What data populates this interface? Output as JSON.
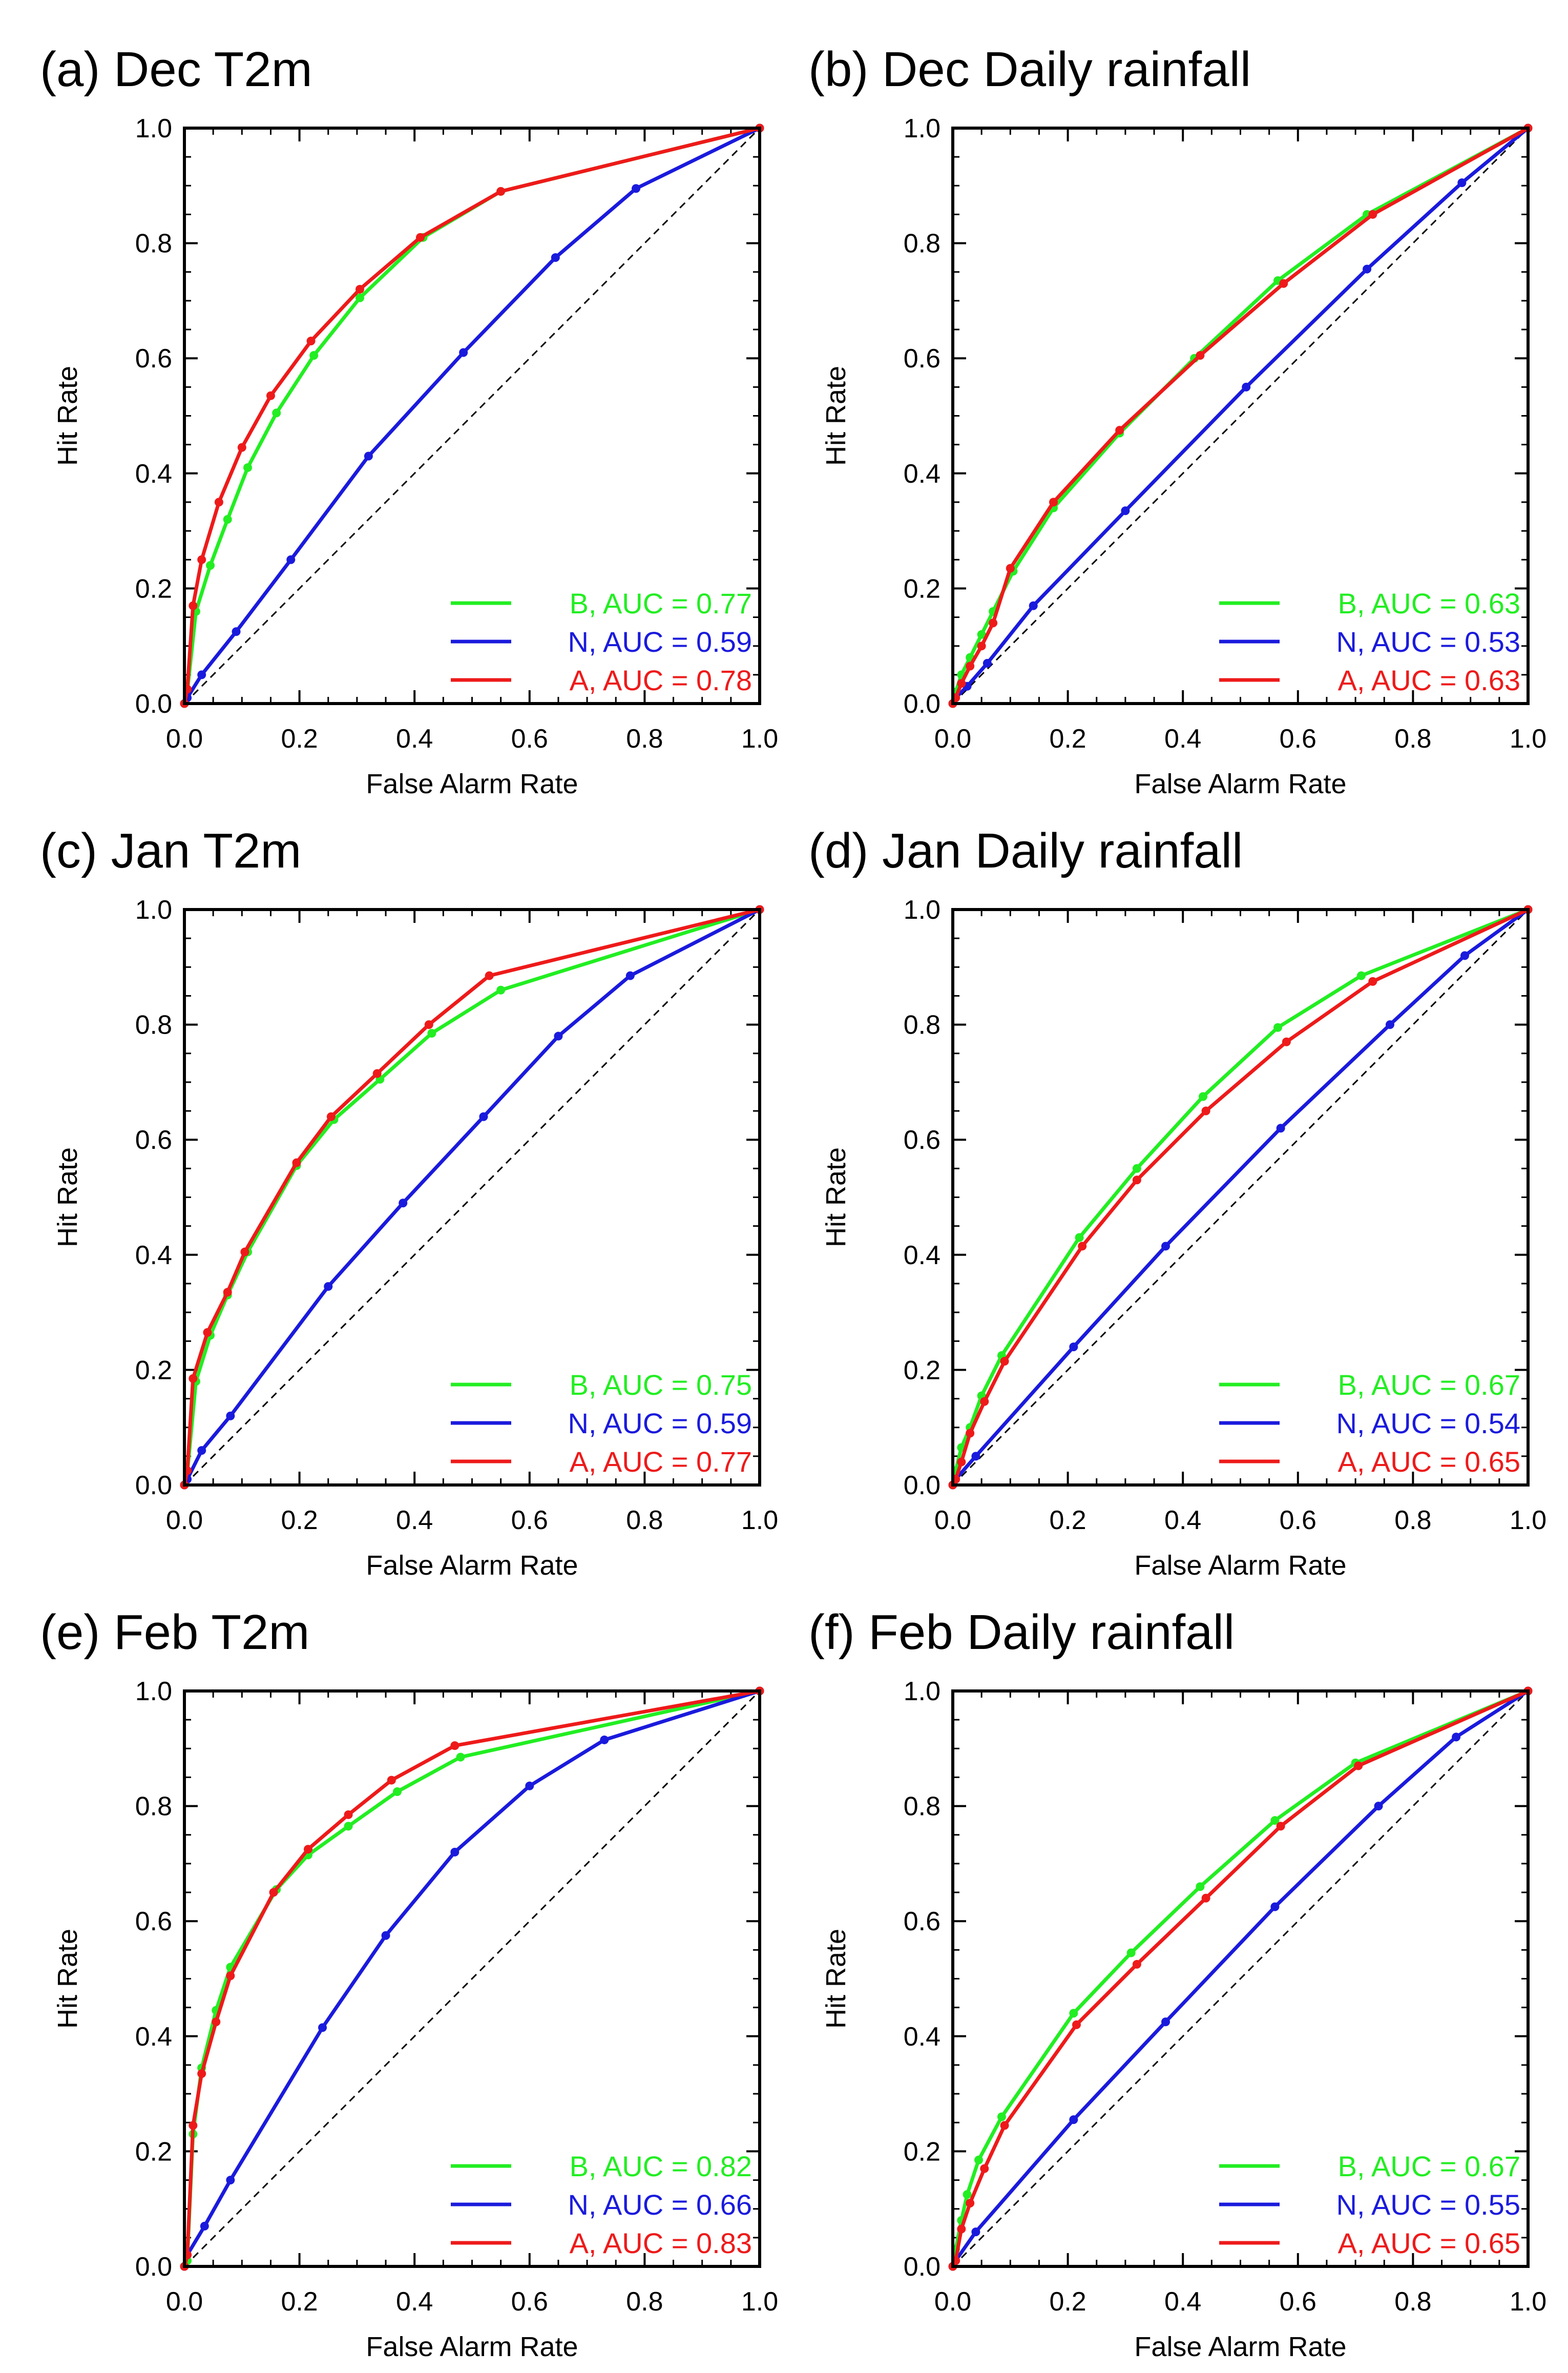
{
  "figure": {
    "colors": {
      "B": "#22ee22",
      "N": "#1a1add",
      "A": "#ee1a1a",
      "diagonal": "#000000"
    }
  },
  "chart_data": [
    {
      "type": "line",
      "title": "(a) Dec  T2m",
      "xlabel": "False Alarm Rate",
      "ylabel": "Hit Rate",
      "xlim": [
        0,
        1
      ],
      "ylim": [
        0,
        1
      ],
      "xticks": [
        "0.0",
        "0.2",
        "0.4",
        "0.6",
        "0.8",
        "1.0"
      ],
      "yticks": [
        "0.0",
        "0.2",
        "0.4",
        "0.6",
        "0.8",
        "1.0"
      ],
      "legend_position": "bottom-right",
      "series": [
        {
          "name": "B",
          "legend": "B, AUC = 0.77",
          "color": "#22ee22",
          "x": [
            0,
            0.005,
            0.02,
            0.045,
            0.075,
            0.11,
            0.16,
            0.225,
            0.305,
            0.415,
            0.55,
            1.0
          ],
          "y": [
            0,
            0.02,
            0.16,
            0.24,
            0.32,
            0.41,
            0.505,
            0.605,
            0.705,
            0.81,
            0.89,
            1.0
          ]
        },
        {
          "name": "N",
          "legend": "N, AUC = 0.59",
          "color": "#1a1add",
          "x": [
            0,
            0.005,
            0.03,
            0.09,
            0.185,
            0.32,
            0.485,
            0.645,
            0.785,
            1.0
          ],
          "y": [
            0,
            0.01,
            0.05,
            0.125,
            0.25,
            0.43,
            0.61,
            0.775,
            0.895,
            1.0
          ]
        },
        {
          "name": "A",
          "legend": "A, AUC = 0.78",
          "color": "#ee1a1a",
          "x": [
            0,
            0.005,
            0.015,
            0.03,
            0.06,
            0.1,
            0.15,
            0.22,
            0.305,
            0.41,
            0.55,
            1.0
          ],
          "y": [
            0,
            0.025,
            0.17,
            0.25,
            0.35,
            0.445,
            0.535,
            0.63,
            0.72,
            0.81,
            0.89,
            1.0
          ]
        }
      ]
    },
    {
      "type": "line",
      "title": "(b) Dec  Daily rainfall",
      "xlabel": "False Alarm Rate",
      "ylabel": "Hit Rate",
      "xlim": [
        0,
        1
      ],
      "ylim": [
        0,
        1
      ],
      "xticks": [
        "0.0",
        "0.2",
        "0.4",
        "0.6",
        "0.8",
        "1.0"
      ],
      "yticks": [
        "0.0",
        "0.2",
        "0.4",
        "0.6",
        "0.8",
        "1.0"
      ],
      "legend_position": "bottom-right",
      "series": [
        {
          "name": "B",
          "legend": "B, AUC = 0.63",
          "color": "#22ee22",
          "x": [
            0,
            0.005,
            0.015,
            0.03,
            0.05,
            0.07,
            0.105,
            0.175,
            0.29,
            0.42,
            0.565,
            0.72,
            1.0
          ],
          "y": [
            0,
            0.02,
            0.05,
            0.08,
            0.12,
            0.16,
            0.23,
            0.34,
            0.47,
            0.6,
            0.735,
            0.85,
            1.0
          ]
        },
        {
          "name": "N",
          "legend": "N, AUC = 0.53",
          "color": "#1a1add",
          "x": [
            0,
            0.005,
            0.025,
            0.06,
            0.14,
            0.3,
            0.51,
            0.72,
            0.885,
            1.0
          ],
          "y": [
            0,
            0.01,
            0.03,
            0.07,
            0.17,
            0.335,
            0.55,
            0.755,
            0.905,
            1.0
          ]
        },
        {
          "name": "A",
          "legend": "A, AUC = 0.63",
          "color": "#ee1a1a",
          "x": [
            0,
            0.005,
            0.015,
            0.03,
            0.05,
            0.07,
            0.1,
            0.175,
            0.29,
            0.43,
            0.575,
            0.73,
            1.0
          ],
          "y": [
            0,
            0.01,
            0.035,
            0.065,
            0.1,
            0.14,
            0.235,
            0.35,
            0.475,
            0.605,
            0.73,
            0.85,
            1.0
          ]
        }
      ]
    },
    {
      "type": "line",
      "title": "(c) Jan  T2m",
      "xlabel": "False Alarm Rate",
      "ylabel": "Hit Rate",
      "xlim": [
        0,
        1
      ],
      "ylim": [
        0,
        1
      ],
      "xticks": [
        "0.0",
        "0.2",
        "0.4",
        "0.6",
        "0.8",
        "1.0"
      ],
      "yticks": [
        "0.0",
        "0.2",
        "0.4",
        "0.6",
        "0.8",
        "1.0"
      ],
      "legend_position": "bottom-right",
      "series": [
        {
          "name": "B",
          "legend": "B, AUC = 0.75",
          "color": "#22ee22",
          "x": [
            0,
            0.005,
            0.02,
            0.045,
            0.075,
            0.11,
            0.195,
            0.26,
            0.34,
            0.43,
            0.55,
            1.0
          ],
          "y": [
            0,
            0.02,
            0.18,
            0.26,
            0.33,
            0.405,
            0.555,
            0.635,
            0.705,
            0.785,
            0.86,
            1.0
          ]
        },
        {
          "name": "N",
          "legend": "N, AUC = 0.59",
          "color": "#1a1add",
          "x": [
            0,
            0.005,
            0.03,
            0.08,
            0.25,
            0.38,
            0.52,
            0.65,
            0.775,
            1.0
          ],
          "y": [
            0,
            0.01,
            0.06,
            0.12,
            0.345,
            0.49,
            0.64,
            0.78,
            0.885,
            1.0
          ]
        },
        {
          "name": "A",
          "legend": "A, AUC = 0.77",
          "color": "#ee1a1a",
          "x": [
            0,
            0.005,
            0.015,
            0.04,
            0.075,
            0.105,
            0.195,
            0.255,
            0.335,
            0.425,
            0.53,
            1.0
          ],
          "y": [
            0,
            0.025,
            0.185,
            0.265,
            0.335,
            0.405,
            0.56,
            0.64,
            0.715,
            0.8,
            0.885,
            1.0
          ]
        }
      ]
    },
    {
      "type": "line",
      "title": "(d) Jan  Daily rainfall",
      "xlabel": "False Alarm Rate",
      "ylabel": "Hit Rate",
      "xlim": [
        0,
        1
      ],
      "ylim": [
        0,
        1
      ],
      "xticks": [
        "0.0",
        "0.2",
        "0.4",
        "0.6",
        "0.8",
        "1.0"
      ],
      "yticks": [
        "0.0",
        "0.2",
        "0.4",
        "0.6",
        "0.8",
        "1.0"
      ],
      "legend_position": "bottom-right",
      "series": [
        {
          "name": "B",
          "legend": "B, AUC = 0.67",
          "color": "#22ee22",
          "x": [
            0,
            0.005,
            0.015,
            0.03,
            0.05,
            0.085,
            0.22,
            0.32,
            0.435,
            0.565,
            0.71,
            1.0
          ],
          "y": [
            0,
            0.025,
            0.065,
            0.1,
            0.155,
            0.225,
            0.43,
            0.55,
            0.675,
            0.795,
            0.885,
            1.0
          ]
        },
        {
          "name": "N",
          "legend": "N, AUC = 0.54",
          "color": "#1a1add",
          "x": [
            0,
            0.005,
            0.04,
            0.21,
            0.37,
            0.57,
            0.76,
            0.89,
            1.0
          ],
          "y": [
            0,
            0.01,
            0.05,
            0.24,
            0.415,
            0.62,
            0.8,
            0.92,
            1.0
          ]
        },
        {
          "name": "A",
          "legend": "A, AUC = 0.65",
          "color": "#ee1a1a",
          "x": [
            0,
            0.005,
            0.015,
            0.03,
            0.055,
            0.09,
            0.225,
            0.32,
            0.44,
            0.58,
            0.73,
            1.0
          ],
          "y": [
            0,
            0.01,
            0.04,
            0.09,
            0.145,
            0.215,
            0.415,
            0.53,
            0.65,
            0.77,
            0.875,
            1.0
          ]
        }
      ]
    },
    {
      "type": "line",
      "title": "(e) Feb  T2m",
      "xlabel": "False Alarm Rate",
      "ylabel": "Hit Rate",
      "xlim": [
        0,
        1
      ],
      "ylim": [
        0,
        1
      ],
      "xticks": [
        "0.0",
        "0.2",
        "0.4",
        "0.6",
        "0.8",
        "1.0"
      ],
      "yticks": [
        "0.0",
        "0.2",
        "0.4",
        "0.6",
        "0.8",
        "1.0"
      ],
      "legend_position": "bottom-right",
      "series": [
        {
          "name": "B",
          "legend": "B, AUC = 0.82",
          "color": "#22ee22",
          "x": [
            0,
            0.005,
            0.015,
            0.03,
            0.055,
            0.08,
            0.16,
            0.215,
            0.285,
            0.37,
            0.48,
            1.0
          ],
          "y": [
            0,
            0.01,
            0.23,
            0.345,
            0.445,
            0.52,
            0.655,
            0.715,
            0.765,
            0.825,
            0.885,
            1.0
          ]
        },
        {
          "name": "N",
          "legend": "N, AUC = 0.66",
          "color": "#1a1add",
          "x": [
            0,
            0.005,
            0.035,
            0.08,
            0.24,
            0.35,
            0.47,
            0.6,
            0.73,
            1.0
          ],
          "y": [
            0,
            0.02,
            0.07,
            0.15,
            0.415,
            0.575,
            0.72,
            0.835,
            0.915,
            1.0
          ]
        },
        {
          "name": "A",
          "legend": "A, AUC = 0.83",
          "color": "#ee1a1a",
          "x": [
            0,
            0.005,
            0.015,
            0.03,
            0.055,
            0.08,
            0.155,
            0.215,
            0.285,
            0.36,
            0.47,
            1.0
          ],
          "y": [
            0,
            0.02,
            0.245,
            0.335,
            0.425,
            0.505,
            0.65,
            0.725,
            0.785,
            0.845,
            0.905,
            1.0
          ]
        }
      ]
    },
    {
      "type": "line",
      "title": "(f) Feb  Daily rainfall",
      "xlabel": "False Alarm Rate",
      "ylabel": "Hit Rate",
      "xlim": [
        0,
        1
      ],
      "ylim": [
        0,
        1
      ],
      "xticks": [
        "0.0",
        "0.2",
        "0.4",
        "0.6",
        "0.8",
        "1.0"
      ],
      "yticks": [
        "0.0",
        "0.2",
        "0.4",
        "0.6",
        "0.8",
        "1.0"
      ],
      "legend_position": "bottom-right",
      "series": [
        {
          "name": "B",
          "legend": "B, AUC = 0.67",
          "color": "#22ee22",
          "x": [
            0,
            0.005,
            0.015,
            0.025,
            0.045,
            0.085,
            0.21,
            0.31,
            0.43,
            0.56,
            0.7,
            1.0
          ],
          "y": [
            0,
            0.03,
            0.08,
            0.125,
            0.185,
            0.26,
            0.44,
            0.545,
            0.66,
            0.775,
            0.875,
            1.0
          ]
        },
        {
          "name": "N",
          "legend": "N, AUC = 0.55",
          "color": "#1a1add",
          "x": [
            0,
            0.005,
            0.04,
            0.21,
            0.37,
            0.56,
            0.74,
            0.875,
            1.0
          ],
          "y": [
            0,
            0.01,
            0.06,
            0.255,
            0.425,
            0.625,
            0.8,
            0.92,
            1.0
          ]
        },
        {
          "name": "A",
          "legend": "A, AUC = 0.65",
          "color": "#ee1a1a",
          "x": [
            0,
            0.005,
            0.015,
            0.03,
            0.055,
            0.09,
            0.215,
            0.32,
            0.44,
            0.57,
            0.705,
            1.0
          ],
          "y": [
            0,
            0.01,
            0.065,
            0.11,
            0.17,
            0.245,
            0.42,
            0.525,
            0.64,
            0.765,
            0.87,
            1.0
          ]
        }
      ]
    }
  ]
}
